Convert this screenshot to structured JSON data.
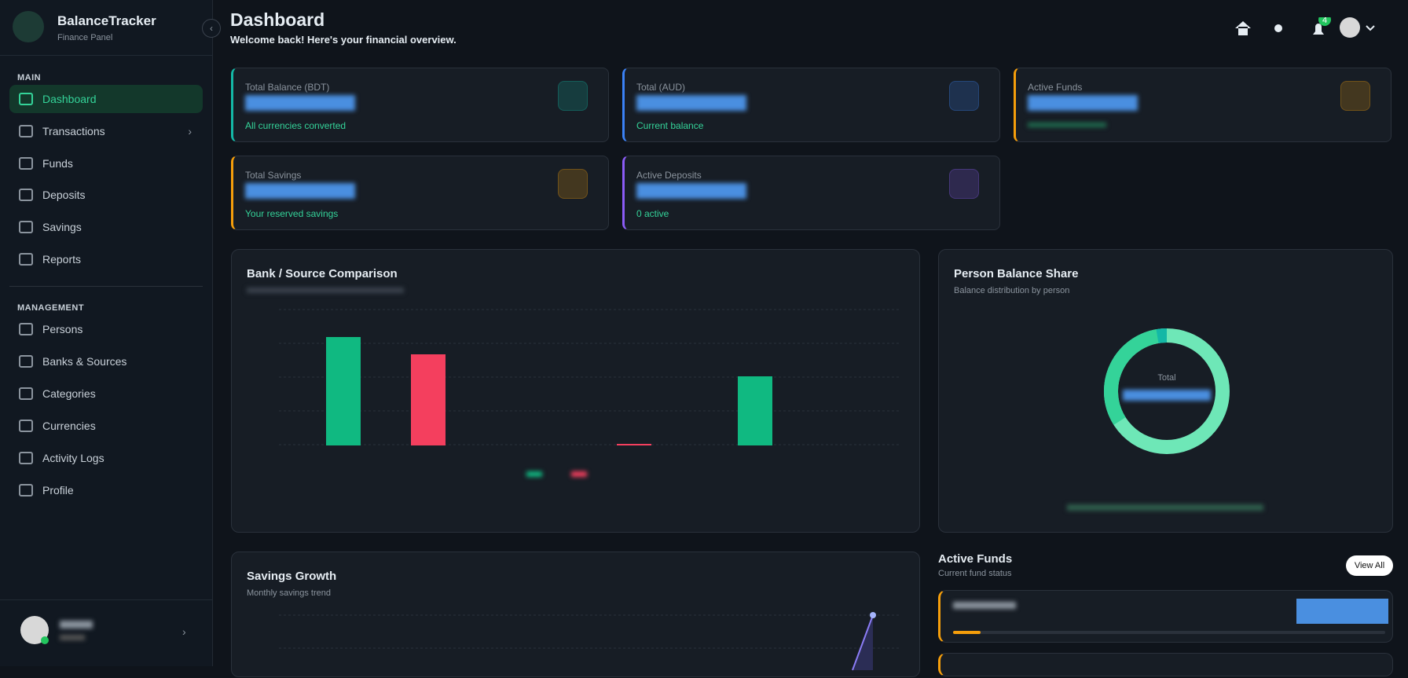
{
  "sidebar": {
    "brand": "BalanceTracker",
    "subtitle": "Finance Panel",
    "sections": [
      {
        "title": "MAIN",
        "items": [
          "Dashboard",
          "Transactions",
          "Funds",
          "Deposits",
          "Savings",
          "Reports"
        ]
      },
      {
        "title": "MANAGEMENT",
        "items": [
          "Persons",
          "Banks & Sources",
          "Categories",
          "Currencies",
          "Activity Logs",
          "Profile"
        ]
      }
    ]
  },
  "header": {
    "title": "Dashboard",
    "subtitle": "Welcome back! Here's your financial overview.",
    "notification_count": "4"
  },
  "cards": [
    {
      "label": "Total Balance (BDT)",
      "note": "All currencies converted",
      "color": "#14b8a6"
    },
    {
      "label": "Total (AUD)",
      "note": "Current balance",
      "color": "#3b82f6"
    },
    {
      "label": "Active Funds",
      "note": null,
      "color": "#f59e0b"
    },
    {
      "label": "Total Savings",
      "note": "Your reserved savings",
      "color": "#f59e0b"
    },
    {
      "label": "Active Deposits",
      "note": "0 active",
      "color": "#8b5cf6"
    }
  ],
  "panels": {
    "comparison": {
      "title": "Bank / Source Comparison"
    },
    "share": {
      "title": "Person Balance Share",
      "subtitle": "Balance distribution by person",
      "center": "Total"
    },
    "savings": {
      "title": "Savings Growth",
      "subtitle": "Monthly savings trend"
    },
    "funds": {
      "title": "Active Funds",
      "subtitle": "Current fund status",
      "button": "View All"
    }
  }
}
